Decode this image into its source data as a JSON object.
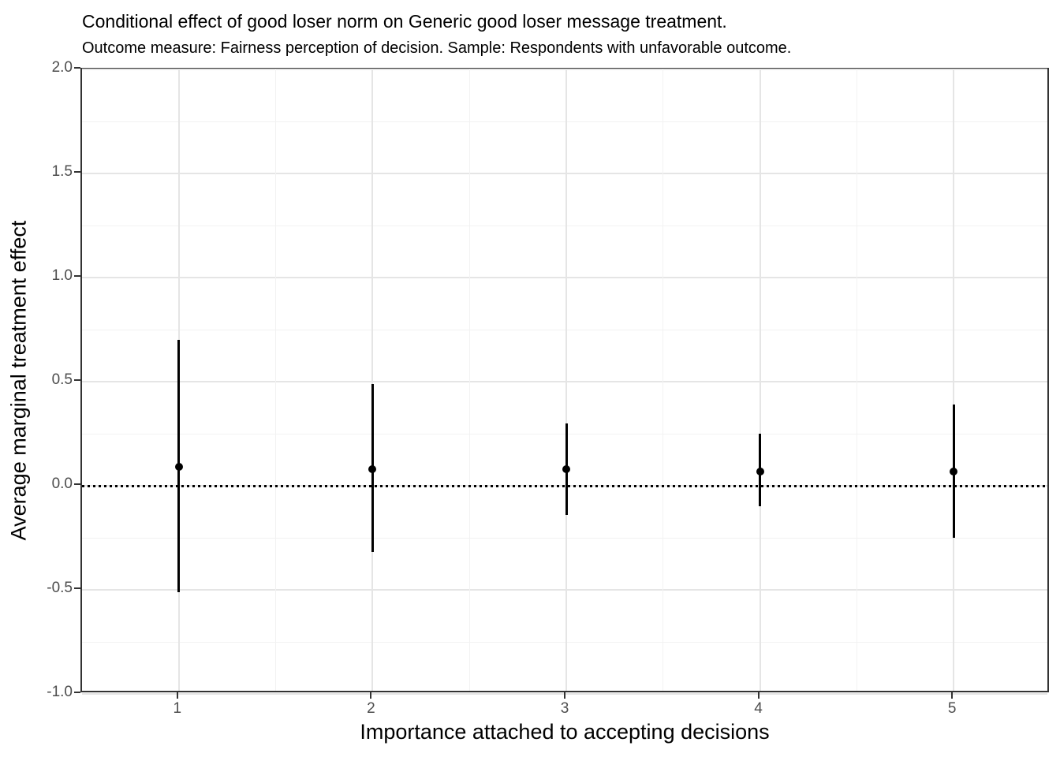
{
  "chart_data": {
    "type": "pointrange",
    "title": "Conditional effect of good loser norm on Generic good loser message treatment.",
    "subtitle": "Outcome measure: Fairness perception of decision. Sample: Respondents with unfavorable outcome.",
    "xlabel": "Importance attached to accepting decisions",
    "ylabel": "Average marginal treatment effect",
    "x": [
      1,
      2,
      3,
      4,
      5
    ],
    "x_tick_labels": [
      "1",
      "2",
      "3",
      "4",
      "5"
    ],
    "series": [
      {
        "name": "Average marginal treatment effect",
        "estimates": [
          0.09,
          0.08,
          0.08,
          0.07,
          0.07
        ],
        "ci_lower": [
          -0.51,
          -0.32,
          -0.14,
          -0.1,
          -0.25
        ],
        "ci_upper": [
          0.7,
          0.49,
          0.3,
          0.25,
          0.39
        ]
      }
    ],
    "ylim": [
      -1.0,
      2.0
    ],
    "y_major_ticks": [
      2.0,
      1.5,
      1.0,
      0.5,
      0.0,
      -0.5,
      -1.0
    ],
    "y_tick_labels": [
      "2.0",
      "1.5",
      "1.0",
      "0.5",
      "0.0",
      "-0.5",
      "-1.0"
    ],
    "y_minor_ticks": [
      1.75,
      1.25,
      0.75,
      0.25,
      -0.25,
      -0.75
    ],
    "reference_line_y": 0.0,
    "grid": true,
    "legend": "none",
    "colors": {
      "point": "#000000",
      "interval": "#000000",
      "reference_line": "#000000",
      "grid_major": "#e5e5e5",
      "grid_minor": "#f2f2f2",
      "panel_border": "#333333",
      "tick_label": "#4d4d4d",
      "title_text": "#000000",
      "background": "#ffffff"
    }
  }
}
